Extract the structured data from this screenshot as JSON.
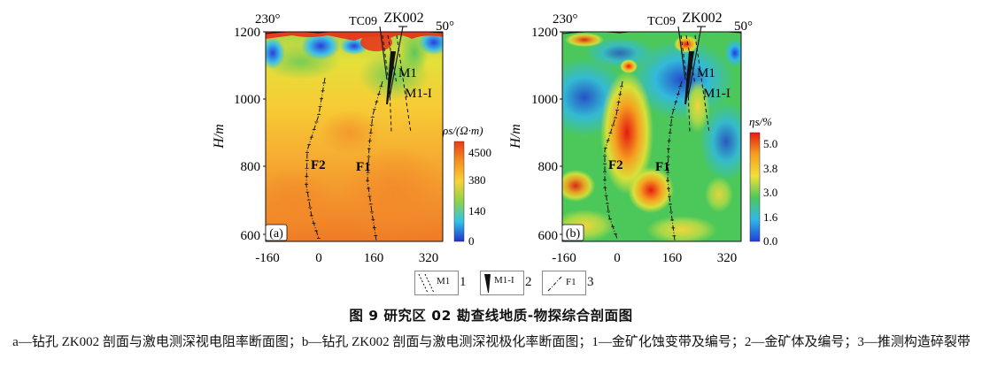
{
  "panels": [
    {
      "id": "a",
      "label": "(a)",
      "azimuth_left": "230°",
      "azimuth_right": "50°",
      "drill_labels": [
        "TC09",
        "ZK002"
      ],
      "zone_labels": [
        "M1",
        "M1-I"
      ],
      "fault_labels": [
        "F2",
        "F1"
      ],
      "colorbar_title": "ρs/(Ω·m)",
      "colorbar_ticks": [
        "4500",
        "380",
        "140",
        "0"
      ]
    },
    {
      "id": "b",
      "label": "(b)",
      "azimuth_left": "230°",
      "azimuth_right": "50°",
      "drill_labels": [
        "TC09",
        "ZK002"
      ],
      "zone_labels": [
        "M1",
        "M1-I"
      ],
      "fault_labels": [
        "F2",
        "F1"
      ],
      "colorbar_title": "ηs/%",
      "colorbar_ticks": [
        "5.0",
        "3.8",
        "3.0",
        "1.6",
        "0.0"
      ]
    }
  ],
  "axes": {
    "ylabel": "H/m",
    "y_ticks": [
      "1200",
      "1000",
      "800",
      "600"
    ],
    "x_ticks": [
      "-160",
      "0",
      "160",
      "320"
    ]
  },
  "colors": {
    "resistivity_low": "#2233cc",
    "resistivity_high": "#e83a1c",
    "chargeability_low": "#1f3fd8",
    "chargeability_high": "#e51a10"
  },
  "legend": [
    {
      "symbol": "alteration-zone-hatch",
      "label": "M1",
      "number": "1"
    },
    {
      "symbol": "orebody-wedge",
      "label": "M1-I",
      "number": "2"
    },
    {
      "symbol": "fault-line",
      "label": "F1",
      "number": "3"
    }
  ],
  "caption": {
    "title": "图 9   研究区 02 勘查线地质-物探综合剖面图",
    "body": "a—钻孔 ZK002 剖面与激电测深视电阻率断面图；b—钻孔 ZK002 剖面与激电测深视极化率断面图；1—金矿化蚀变带及编号；2—金矿体及编号；3—推测构造碎裂带"
  }
}
